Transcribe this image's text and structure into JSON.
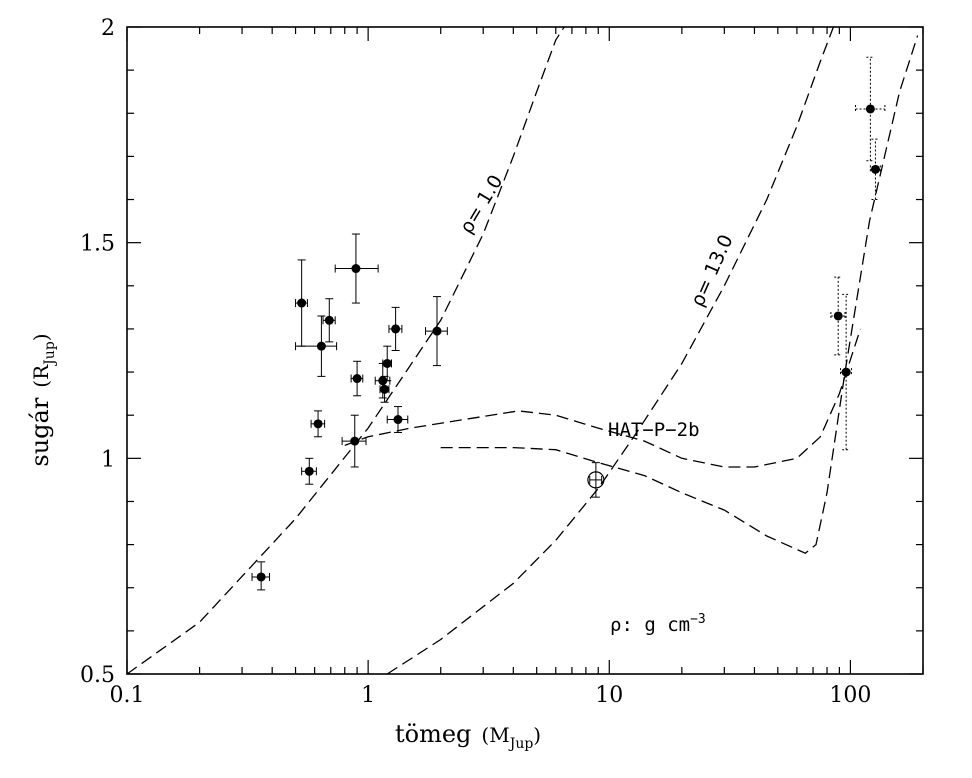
{
  "chart_data": {
    "type": "scatter",
    "xlabel": "tömeg",
    "xunit": "(M",
    "xunit_sub": "Jup",
    "ylabel": "sugár",
    "yunit": "(R",
    "yunit_sub": "Jup",
    "xscale": "log",
    "xlim": [
      0.1,
      200
    ],
    "ylim": [
      0.5,
      2.0
    ],
    "xticks": [
      {
        "value": 0.1,
        "label": "0.1"
      },
      {
        "value": 1,
        "label": "1"
      },
      {
        "value": 10,
        "label": "10"
      },
      {
        "value": 100,
        "label": "100"
      }
    ],
    "yticks": [
      {
        "value": 0.5,
        "label": "0.5"
      },
      {
        "value": 1.0,
        "label": "1"
      },
      {
        "value": 1.5,
        "label": "1.5"
      },
      {
        "value": 2.0,
        "label": "2"
      }
    ],
    "grid": false,
    "points": [
      {
        "x": 0.36,
        "y": 0.725,
        "xerr": [
          0.03,
          0.03
        ],
        "yerr": [
          0.03,
          0.035
        ],
        "style": "filled"
      },
      {
        "x": 0.53,
        "y": 1.36,
        "xerr": [
          0.03,
          0.03
        ],
        "yerr": [
          0.1,
          0.1
        ],
        "style": "filled"
      },
      {
        "x": 0.57,
        "y": 0.97,
        "xerr": [
          0.04,
          0.04
        ],
        "yerr": [
          0.03,
          0.03
        ],
        "style": "filled"
      },
      {
        "x": 0.62,
        "y": 1.08,
        "xerr": [
          0.04,
          0.04
        ],
        "yerr": [
          0.03,
          0.03
        ],
        "style": "filled"
      },
      {
        "x": 0.64,
        "y": 1.26,
        "xerr": [
          0.14,
          0.1
        ],
        "yerr": [
          0.07,
          0.07
        ],
        "style": "filled"
      },
      {
        "x": 0.69,
        "y": 1.32,
        "xerr": [
          0.04,
          0.04
        ],
        "yerr": [
          0.05,
          0.05
        ],
        "style": "filled"
      },
      {
        "x": 0.88,
        "y": 1.04,
        "xerr": [
          0.1,
          0.1
        ],
        "yerr": [
          0.06,
          0.06
        ],
        "style": "filled"
      },
      {
        "x": 0.89,
        "y": 1.44,
        "xerr": [
          0.16,
          0.21
        ],
        "yerr": [
          0.08,
          0.08
        ],
        "style": "filled"
      },
      {
        "x": 0.9,
        "y": 1.185,
        "xerr": [
          0.05,
          0.05
        ],
        "yerr": [
          0.04,
          0.04
        ],
        "style": "filled"
      },
      {
        "x": 1.15,
        "y": 1.18,
        "xerr": [
          0.08,
          0.08
        ],
        "yerr": [
          0.04,
          0.04
        ],
        "style": "filled"
      },
      {
        "x": 1.17,
        "y": 1.16,
        "xerr": [
          0.05,
          0.05
        ],
        "yerr": [
          0.03,
          0.03
        ],
        "style": "filled"
      },
      {
        "x": 1.2,
        "y": 1.22,
        "xerr": [
          0.05,
          0.05
        ],
        "yerr": [
          0.04,
          0.04
        ],
        "style": "filled"
      },
      {
        "x": 1.3,
        "y": 1.3,
        "xerr": [
          0.08,
          0.08
        ],
        "yerr": [
          0.05,
          0.05
        ],
        "style": "filled"
      },
      {
        "x": 1.33,
        "y": 1.09,
        "xerr": [
          0.13,
          0.13
        ],
        "yerr": [
          0.03,
          0.03
        ],
        "style": "filled"
      },
      {
        "x": 1.93,
        "y": 1.295,
        "xerr": [
          0.2,
          0.2
        ],
        "yerr": [
          0.08,
          0.08
        ],
        "style": "filled"
      },
      {
        "x": 8.8,
        "y": 0.95,
        "xerr": [
          0.5,
          0.5
        ],
        "yerr": [
          0.04,
          0.04
        ],
        "style": "open",
        "label": "HAT-P-2b"
      },
      {
        "x": 89,
        "y": 1.33,
        "xerr": [
          6,
          6
        ],
        "yerr": [
          0.09,
          0.09
        ],
        "style": "filled",
        "dotted": true
      },
      {
        "x": 96,
        "y": 1.2,
        "xerr": [
          5,
          5
        ],
        "yerr": [
          0.18,
          0.18
        ],
        "style": "filled",
        "dotted": true
      },
      {
        "x": 121,
        "y": 1.81,
        "xerr": [
          16,
          18
        ],
        "yerr": [
          0.12,
          0.12
        ],
        "style": "filled",
        "dotted": true
      },
      {
        "x": 127,
        "y": 1.67,
        "xerr": [
          6,
          6
        ],
        "yerr": [
          0.07,
          0.07
        ],
        "style": "filled",
        "dotted": true
      }
    ],
    "curves": [
      {
        "name": "ρ= 1.0",
        "x": [
          0.1,
          0.2,
          0.5,
          1.0,
          2.0,
          3.0,
          4.0,
          5.0,
          6.0,
          6.5
        ],
        "y": [
          0.5,
          0.62,
          0.86,
          1.07,
          1.32,
          1.52,
          1.7,
          1.85,
          1.97,
          2.0
        ]
      },
      {
        "name": "ρ= 13.0",
        "x": [
          1.2,
          2.0,
          4.0,
          6.0,
          9.0,
          13.0,
          20.0,
          30.0,
          45.0,
          60.0,
          75.0,
          85.0
        ],
        "y": [
          0.5,
          0.58,
          0.71,
          0.81,
          0.93,
          1.06,
          1.22,
          1.4,
          1.6,
          1.77,
          1.92,
          2.0
        ]
      },
      {
        "name": "track-upper",
        "x": [
          0.8,
          1.0,
          1.5,
          2.5,
          4.2,
          6.0,
          9.0,
          14,
          20,
          30,
          40,
          60,
          75,
          90,
          110
        ],
        "y": [
          1.03,
          1.05,
          1.07,
          1.09,
          1.11,
          1.1,
          1.07,
          1.04,
          1.0,
          0.98,
          0.98,
          1.0,
          1.05,
          1.15,
          1.3
        ]
      },
      {
        "name": "track-lower",
        "x": [
          2.0,
          3.0,
          4.0,
          6.0,
          9.0,
          14,
          20,
          30,
          45,
          65,
          72,
          80,
          95,
          120,
          160,
          190
        ],
        "y": [
          1.025,
          1.025,
          1.025,
          1.02,
          0.99,
          0.96,
          0.92,
          0.88,
          0.82,
          0.78,
          0.8,
          0.92,
          1.2,
          1.55,
          1.85,
          1.98
        ]
      }
    ],
    "annotations": {
      "rho1": "ρ= 1.0",
      "rho13": "ρ= 13.0",
      "planet": "HAT−P−2b",
      "units_note": "ρ: g cm",
      "units_sup": "−3"
    }
  }
}
